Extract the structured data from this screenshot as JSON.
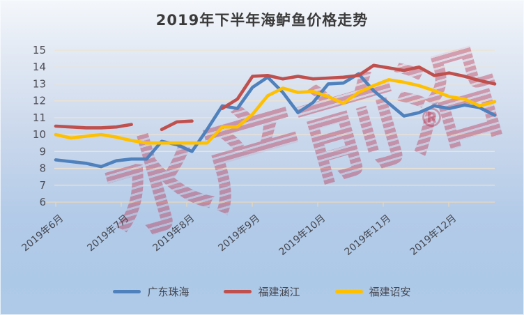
{
  "title": "2019年下半年海鲈鱼价格走势",
  "watermark": {
    "text": "水产前沿",
    "registered": "®"
  },
  "colors": {
    "series_blue": "#4F81BD",
    "series_red": "#C0504D",
    "series_yellow": "#FFC000",
    "gridline": "#EEE3D0",
    "axis": "#E3D6C0",
    "tick_label": "#4D4D55"
  },
  "chart_data": {
    "type": "line",
    "title": "2019年下半年海鲈鱼价格走势",
    "x_tick_labels": [
      "2019年6月",
      "2019年7月",
      "2019年8月",
      "2019年9月",
      "2019年10月",
      "2019年11月",
      "2019年12月"
    ],
    "x_note": "weekly points, 30 samples from June to December 2019",
    "y_ticks": [
      6,
      7,
      8,
      9,
      10,
      11,
      12,
      13,
      14,
      15
    ],
    "ylim": [
      6,
      15
    ],
    "ylabel": "",
    "xlabel": "",
    "grid": true,
    "legend_position": "bottom",
    "series": [
      {
        "id": "guangdong-zhuhai",
        "name": "广东珠海",
        "color": "#4F81BD",
        "values": [
          8.5,
          8.4,
          8.3,
          8.1,
          8.45,
          8.55,
          8.55,
          9.6,
          9.4,
          9.0,
          10.3,
          11.7,
          11.55,
          12.8,
          13.4,
          12.5,
          11.3,
          11.9,
          13.0,
          13.05,
          13.6,
          12.6,
          11.85,
          11.1,
          11.3,
          11.7,
          11.55,
          11.75,
          11.6,
          11.15
        ]
      },
      {
        "id": "fujian-hanjiang",
        "name": "福建涵江",
        "color": "#C0504D",
        "values": [
          10.5,
          10.45,
          10.4,
          10.4,
          10.45,
          10.6,
          null,
          10.3,
          10.75,
          10.8,
          null,
          11.55,
          12.1,
          13.45,
          13.5,
          13.3,
          13.45,
          13.3,
          13.35,
          13.4,
          13.5,
          14.1,
          13.95,
          13.8,
          14.0,
          13.5,
          13.65,
          13.45,
          13.2,
          13.0
        ]
      },
      {
        "id": "fujian-zhaoan",
        "name": "福建诏安",
        "color": "#FFC000",
        "values": [
          10.0,
          9.8,
          9.9,
          10.0,
          9.85,
          9.65,
          9.5,
          9.5,
          9.5,
          9.5,
          9.5,
          10.45,
          10.45,
          11.2,
          12.3,
          12.75,
          12.5,
          12.55,
          12.25,
          11.85,
          12.5,
          12.9,
          13.25,
          13.1,
          12.9,
          12.6,
          12.25,
          12.1,
          11.7,
          11.95
        ]
      }
    ]
  }
}
